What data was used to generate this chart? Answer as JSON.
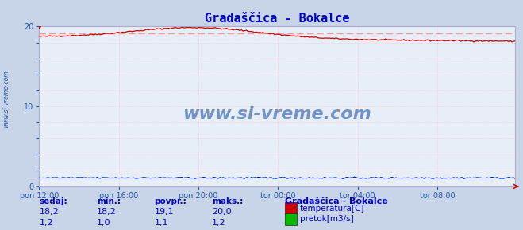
{
  "title": "Gradaščica - Bokalce",
  "title_color": "#0000cc",
  "bg_color": "#c8d4e8",
  "plot_bg_color": "#e8eef8",
  "grid_color": "#ffbbbb",
  "border_color": "#aaaacc",
  "x_tick_labels": [
    "pon 12:00",
    "pon 16:00",
    "pon 20:00",
    "tor 00:00",
    "tor 04:00",
    "tor 08:00"
  ],
  "x_tick_positions": [
    0,
    48,
    96,
    144,
    192,
    240
  ],
  "n_points": 288,
  "ylim": [
    0,
    20
  ],
  "yticks": [
    0,
    2,
    4,
    6,
    8,
    10,
    12,
    14,
    16,
    18,
    20
  ],
  "temp_color": "#cc0000",
  "flow_color": "#00bb00",
  "flow_line_color": "#0000cc",
  "watermark_color": "#2255aa",
  "watermark_text": "www.si-vreme.com",
  "sidebar_text": "www.si-vreme.com",
  "sidebar_color": "#2255aa",
  "temp_avg_line_color": "#ff9999",
  "temp_avg_value": 19.1,
  "table_color": "#0000cc",
  "legend_title": "Gradaščica - Bokalce",
  "legend_items": [
    "temperatura[C]",
    "pretok[m3/s]"
  ],
  "legend_colors": [
    "#cc0000",
    "#00bb00"
  ],
  "table_headers": [
    "sedaj:",
    "min.:",
    "povpr.:",
    "maks.:"
  ],
  "table_row1": [
    "18,2",
    "18,2",
    "19,1",
    "20,0"
  ],
  "table_row2": [
    "1,2",
    "1,0",
    "1,1",
    "1,2"
  ]
}
